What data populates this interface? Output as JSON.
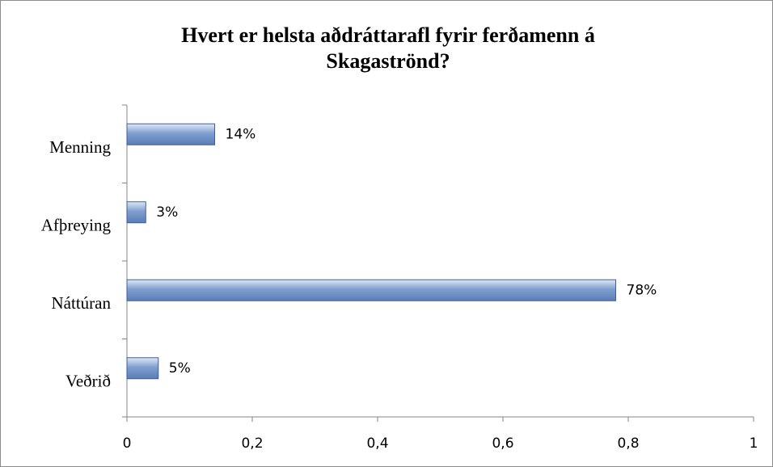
{
  "chart_data": {
    "type": "bar",
    "title": "Hvert er helsta aðdráttarafl fyrir ferðamenn á Skagaströnd?",
    "categories": [
      "Menning",
      "Afþreying",
      "Náttúran",
      "Veðrið"
    ],
    "values": [
      0.14,
      0.03,
      0.78,
      0.05
    ],
    "value_labels": [
      "14%",
      "3%",
      "78%",
      "5%"
    ],
    "color": "#7f9fcf",
    "xlim": [
      0,
      1
    ],
    "xticks": [
      0,
      {
        "value": 0.2,
        "label": "0,2"
      },
      {
        "value": 0.4,
        "label": "0,4"
      },
      {
        "value": 0.6,
        "label": "0,6"
      },
      {
        "value": 0.8,
        "label": "0,8"
      },
      1
    ]
  }
}
